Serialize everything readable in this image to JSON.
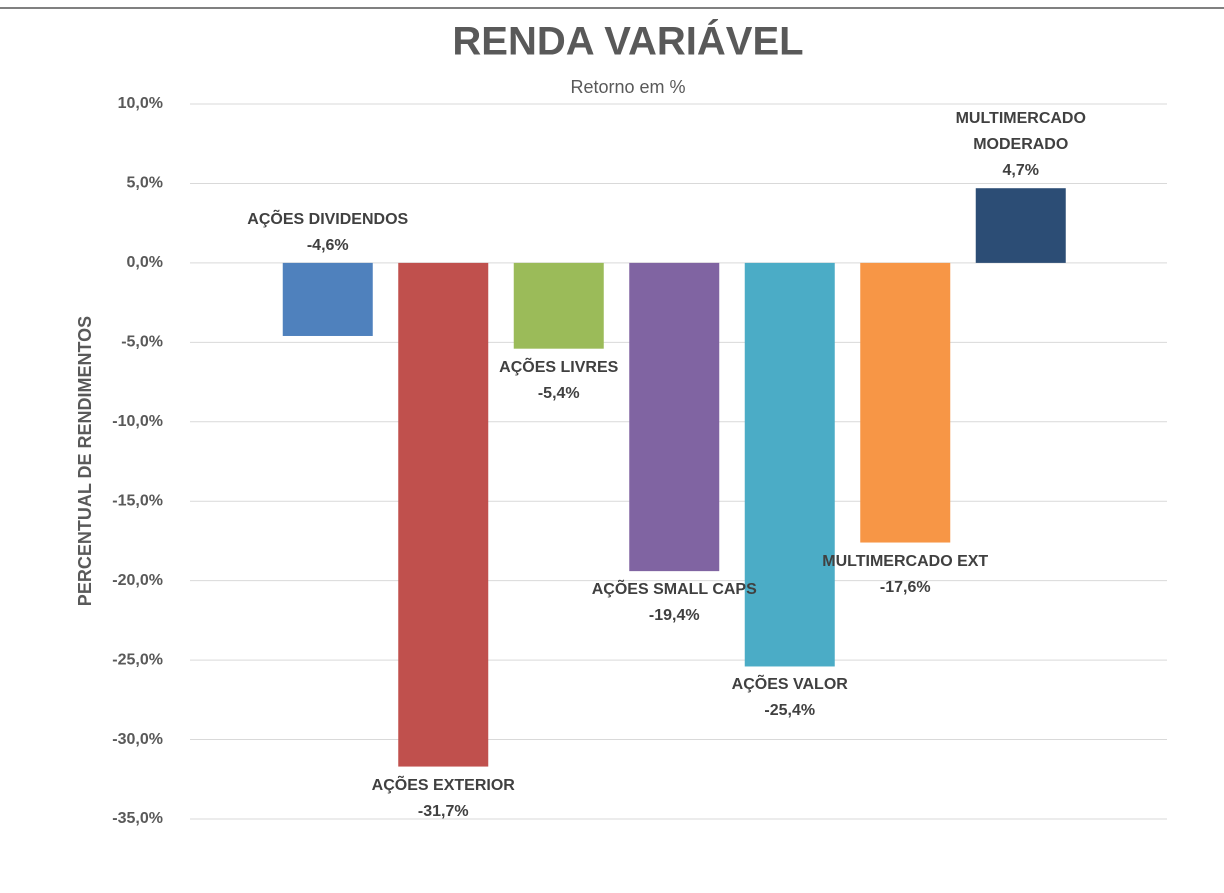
{
  "chart_data": {
    "type": "bar",
    "title": "RENDA VARIÁVEL",
    "subtitle": "Retorno em %",
    "ylabel": "PERCENTUAL DE RENDIMENTOS",
    "categories": [
      "AÇÕES DIVIDENDOS",
      "AÇÕES EXTERIOR",
      "AÇÕES LIVRES",
      "AÇÕES SMALL CAPS",
      "AÇÕES VALOR",
      "MULTIMERCADO EXT",
      "MULTIMERCADO\nMODERADO"
    ],
    "values": [
      -4.6,
      -31.7,
      -5.4,
      -19.4,
      -25.4,
      -17.6,
      4.7
    ],
    "value_labels": [
      "-4,6%",
      "-31,7%",
      "-5,4%",
      "-19,4%",
      "-25,4%",
      "-17,6%",
      "4,7%"
    ],
    "colors": [
      "#4f81bd",
      "#c0504d",
      "#9bbb59",
      "#8064a2",
      "#4bacc6",
      "#f79646",
      "#2c4d75"
    ],
    "ylim": [
      -35,
      10
    ],
    "yticks": [
      {
        "value": 10,
        "label": "10,0%"
      },
      {
        "value": 5,
        "label": "5,0%"
      },
      {
        "value": 0,
        "label": "0,0%"
      },
      {
        "value": -5,
        "label": "-5,0%"
      },
      {
        "value": -10,
        "label": "-10,0%"
      },
      {
        "value": -15,
        "label": "-15,0%"
      },
      {
        "value": -20,
        "label": "-20,0%"
      },
      {
        "value": -25,
        "label": "-25,0%"
      },
      {
        "value": -30,
        "label": "-30,0%"
      },
      {
        "value": -35,
        "label": "-35,0%"
      }
    ],
    "grid": true
  }
}
